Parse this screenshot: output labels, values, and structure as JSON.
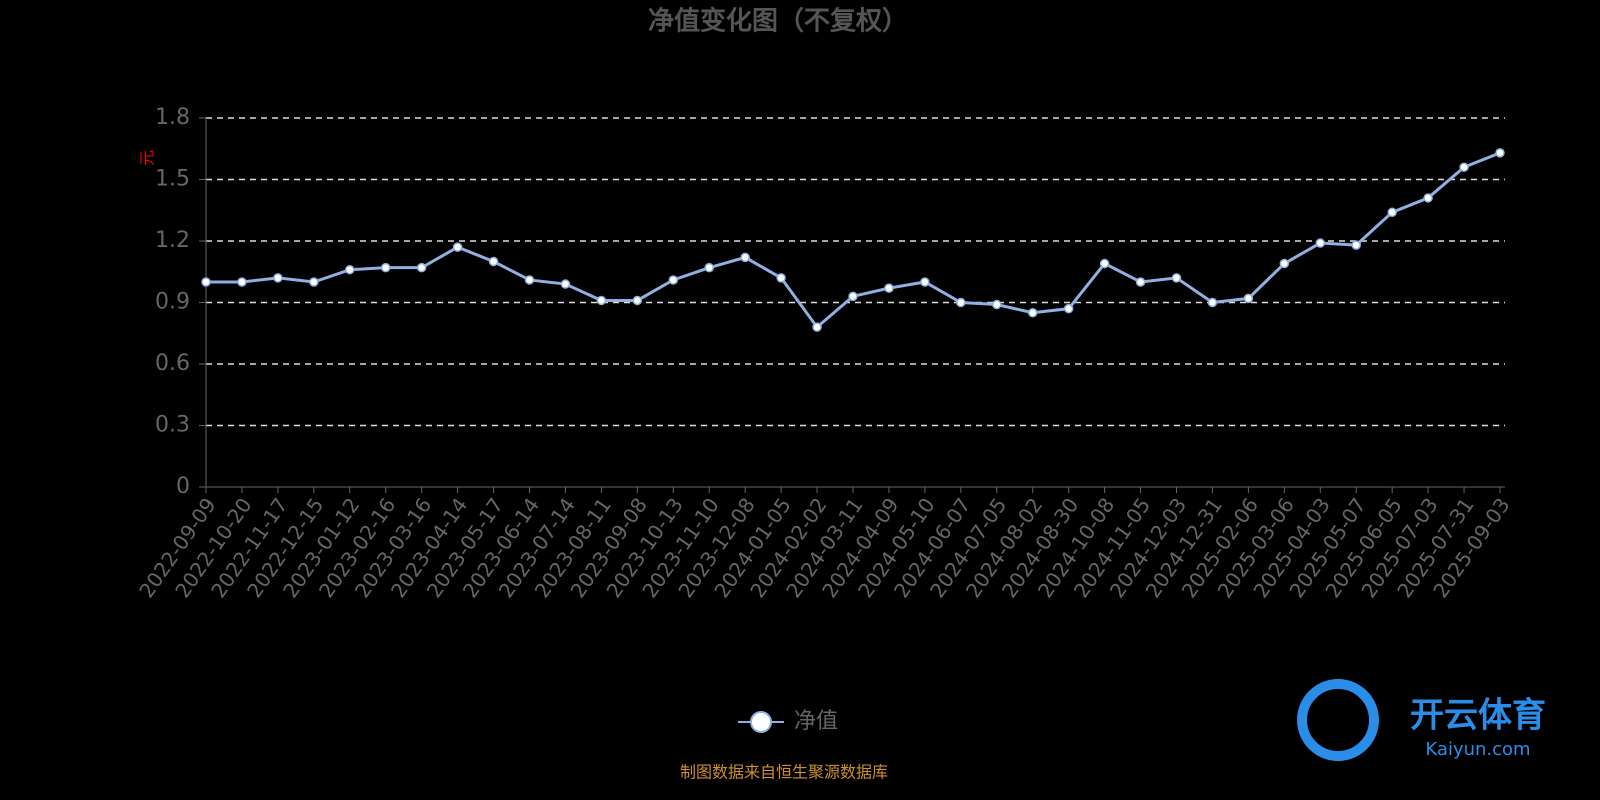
{
  "chart_data": {
    "type": "line",
    "title": "净值变化图（不复权）",
    "y_label": "元",
    "categories": [
      "2022-09-09",
      "2022-10-20",
      "2022-11-17",
      "2022-12-15",
      "2023-01-12",
      "2023-02-16",
      "2023-03-16",
      "2023-04-14",
      "2023-05-17",
      "2023-06-14",
      "2023-07-14",
      "2023-08-11",
      "2023-09-08",
      "2023-10-13",
      "2023-11-10",
      "2023-12-08",
      "2024-01-05",
      "2024-02-02",
      "2024-03-11",
      "2024-04-09",
      "2024-05-10",
      "2024-06-07",
      "2024-07-05",
      "2024-08-02",
      "2024-08-30",
      "2024-10-08",
      "2024-11-05",
      "2024-12-03",
      "2024-12-31",
      "2025-02-06",
      "2025-03-06",
      "2025-04-03",
      "2025-05-07",
      "2025-06-05",
      "2025-07-03",
      "2025-07-31",
      "2025-09-03"
    ],
    "series": [
      {
        "name": "净值",
        "color": "#8fb0e0",
        "values": [
          1.0,
          1.0,
          1.02,
          1.0,
          1.06,
          1.07,
          1.07,
          1.17,
          1.1,
          1.01,
          0.99,
          0.91,
          0.91,
          1.01,
          1.07,
          1.12,
          1.02,
          0.78,
          0.93,
          0.97,
          1.0,
          0.9,
          0.89,
          0.85,
          0.87,
          1.09,
          1.0,
          1.02,
          0.9,
          0.92,
          1.09,
          1.19,
          1.18,
          1.34,
          1.41,
          1.56,
          1.63
        ]
      }
    ],
    "ylim": [
      0,
      1.8
    ],
    "yticks": [
      0,
      0.3,
      0.6,
      0.9,
      1.2,
      1.5,
      1.8
    ],
    "grid": true,
    "source": "制图数据来自恒生聚源数据库"
  },
  "watermark": {
    "brand": "开云体育",
    "site": "Kaiyun.com"
  }
}
